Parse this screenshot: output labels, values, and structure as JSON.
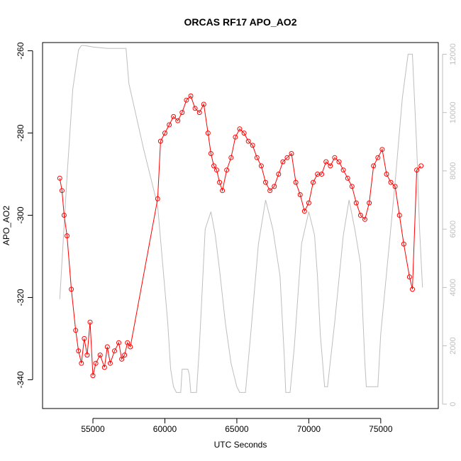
{
  "chart_data": {
    "type": "line",
    "title": "ORCAS RF17 APO_AO2",
    "xlabel": "UTC Seconds",
    "ylabel": "APO_AO2",
    "xlim": [
      51500,
      79000
    ],
    "ylim": [
      -347,
      -258
    ],
    "y2lim": [
      -150,
      12400
    ],
    "x_ticks": [
      55000,
      60000,
      65000,
      70000,
      75000
    ],
    "x_tick_labels": [
      "55000",
      "60000",
      "65000",
      "70000",
      "75000"
    ],
    "y_ticks": [
      -340,
      -320,
      -300,
      -280,
      -260
    ],
    "y_tick_labels": [
      "-340",
      "-320",
      "-300",
      "-280",
      "-260"
    ],
    "y2_ticks": [
      0,
      2000,
      4000,
      6000,
      8000,
      10000,
      12000
    ],
    "y2_tick_labels": [
      "0",
      "2000",
      "4000",
      "6000",
      "8000",
      "10000",
      "12000"
    ],
    "grid": false,
    "legend": "none",
    "colors": {
      "apo": "#ff0000",
      "altitude": "#bebebe",
      "axis": "#000000"
    },
    "series": [
      {
        "role": "apo",
        "axis": "left",
        "style": "line+open-circle",
        "x": [
          52700,
          52850,
          53000,
          53200,
          53500,
          53800,
          54000,
          54200,
          54400,
          54600,
          54800,
          55000,
          55200,
          55500,
          55800,
          56000,
          56200,
          56500,
          56800,
          57000,
          57200,
          57400,
          57600,
          59500,
          59700,
          60000,
          60300,
          60600,
          60900,
          61200,
          61500,
          61800,
          62100,
          62400,
          62700,
          63000,
          63200,
          63400,
          63600,
          63800,
          64000,
          64300,
          64600,
          64900,
          65200,
          65500,
          65800,
          66100,
          66400,
          66700,
          67000,
          67300,
          67600,
          67900,
          68200,
          68500,
          68800,
          69100,
          69400,
          69700,
          70000,
          70300,
          70600,
          70900,
          71200,
          71500,
          71800,
          72100,
          72400,
          72700,
          73000,
          73300,
          73600,
          73900,
          74200,
          74500,
          74800,
          75100,
          75400,
          75700,
          76000,
          76300,
          76600,
          77000,
          77200,
          77500,
          77800
        ],
        "values": [
          -291,
          -294,
          -300,
          -305,
          -318,
          -328,
          -333,
          -336,
          -330,
          -334,
          -326,
          -339,
          -336,
          -334,
          -337,
          -332,
          -336,
          -333,
          -331,
          -335,
          -334,
          -331,
          -332,
          -296,
          -282,
          -280,
          -278,
          -276,
          -277,
          -275,
          -272,
          -271,
          -274,
          -275,
          -273,
          -280,
          -285,
          -288,
          -289,
          -292,
          -294,
          -289,
          -286,
          -281,
          -279,
          -280,
          -282,
          -283,
          -286,
          -288,
          -292,
          -294,
          -293,
          -290,
          -287,
          -286,
          -285,
          -292,
          -295,
          -299,
          -297,
          -292,
          -290,
          -290,
          -287,
          -288,
          -286,
          -287,
          -289,
          -291,
          -293,
          -297,
          -300,
          -301,
          -297,
          -288,
          -286,
          -284,
          -290,
          -292,
          -293,
          -300,
          -307,
          -315,
          -318,
          -289,
          -288
        ]
      },
      {
        "role": "altitude",
        "axis": "right",
        "style": "line",
        "x": [
          52700,
          53200,
          53600,
          54000,
          54200,
          54400,
          55000,
          56000,
          57000,
          57300,
          57500,
          58500,
          59500,
          60200,
          60400,
          60600,
          60800,
          61100,
          61200,
          61600,
          61700,
          61800,
          62000,
          62200,
          62400,
          62800,
          63200,
          63500,
          63800,
          64200,
          64600,
          65000,
          65200,
          65300,
          65400,
          65600,
          66000,
          66500,
          67000,
          67500,
          68000,
          68300,
          68400,
          68600,
          68700,
          69000,
          69500,
          70000,
          70400,
          70600,
          70800,
          71100,
          71300,
          71800,
          72400,
          72800,
          73200,
          73600,
          73900,
          74000,
          74200,
          74400,
          74600,
          74800,
          75000,
          75500,
          76000,
          76500,
          76900,
          77200,
          77500,
          77700,
          77900
        ],
        "values": [
          3600,
          7800,
          10800,
          12150,
          12300,
          12300,
          12250,
          12200,
          12200,
          12200,
          11000,
          8800,
          6800,
          2800,
          1200,
          600,
          400,
          400,
          1200,
          1200,
          1000,
          400,
          400,
          400,
          2000,
          6000,
          6600,
          5800,
          4600,
          2800,
          1400,
          600,
          400,
          400,
          400,
          400,
          2600,
          5500,
          7000,
          6000,
          4400,
          1600,
          400,
          400,
          400,
          2000,
          5500,
          6600,
          5800,
          4400,
          2400,
          600,
          600,
          2800,
          5800,
          7000,
          6000,
          4800,
          1400,
          600,
          600,
          600,
          600,
          600,
          2400,
          5000,
          7600,
          10500,
          12000,
          12000,
          8800,
          6000,
          4000
        ]
      }
    ]
  }
}
